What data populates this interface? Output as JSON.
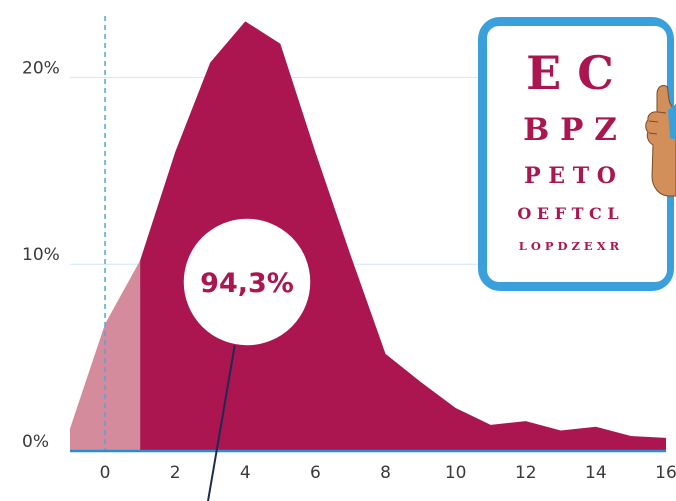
{
  "chart_data": {
    "type": "area",
    "x": [
      -1,
      0,
      1,
      2,
      3,
      4,
      5,
      6,
      7,
      8,
      9,
      10,
      11,
      12,
      13,
      14,
      15,
      16
    ],
    "values": [
      1.2,
      6.8,
      10.2,
      16.0,
      20.8,
      23.0,
      21.8,
      16.0,
      10.5,
      5.2,
      3.7,
      2.3,
      1.4,
      1.6,
      1.1,
      1.3,
      0.8,
      0.7
    ],
    "highlight_from_x": 1,
    "xlim": [
      -1,
      16
    ],
    "ylim": [
      0,
      23.5
    ],
    "x_ticks": [
      0,
      2,
      4,
      6,
      8,
      10,
      12,
      14,
      16
    ],
    "x_tick_labels": [
      "0",
      "2",
      "4",
      "6",
      "8",
      "10",
      "12",
      "14",
      "16"
    ],
    "y_ticks": [
      0,
      10,
      20
    ],
    "y_tick_labels": [
      "0%",
      "10%",
      "20%"
    ],
    "reference_line_x": 0,
    "gridlines": "horizontal",
    "callout": "94,3%",
    "title": "",
    "xlabel": "",
    "ylabel": "",
    "colors": {
      "main_area": "#ab1650",
      "light_area": "#d48c9c",
      "gridline": "#cfe8f5",
      "baseline": "#2a8fd0",
      "reference_line": "#4aa8d8",
      "chart_frame": "#3aa0dc"
    }
  },
  "eye_chart": {
    "rows": [
      "E C",
      "B P Z",
      "P E T O",
      "O E F T C L",
      "L O P D Z E X R"
    ]
  }
}
